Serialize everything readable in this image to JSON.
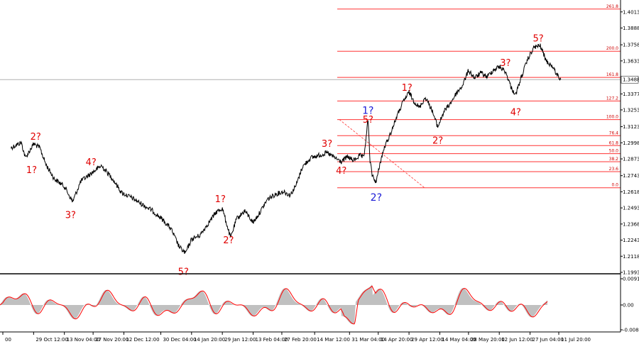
{
  "chart_data": {
    "type": "line",
    "main_panel": {
      "y_ticks": [
        "1.4013",
        "1.3888",
        "1.3758",
        "1.3633",
        "1.3377",
        "1.3253",
        "1.3123",
        "1.2998",
        "1.2873",
        "1.2743",
        "1.2618",
        "1.2493",
        "1.2368",
        "1.2243",
        "1.2118",
        "1.1993"
      ],
      "ylim": [
        1.1993,
        1.41
      ],
      "current_price": "1.3488",
      "price_line_color": "#b0b0b0",
      "series_color": "#000000",
      "fibonacci": {
        "color": "#ff3333",
        "levels": [
          {
            "label": "261.8",
            "value": 1.4035
          },
          {
            "label": "200.0",
            "value": 1.3708
          },
          {
            "label": "161.8",
            "value": 1.3505
          },
          {
            "label": "127.2",
            "value": 1.3322
          },
          {
            "label": "100.0",
            "value": 1.3178
          },
          {
            "label": "76.4",
            "value": 1.3053
          },
          {
            "label": "61.8",
            "value": 1.2976
          },
          {
            "label": "50.0",
            "value": 1.2914
          },
          {
            "label": "38.2",
            "value": 1.2851
          },
          {
            "label": "23.6",
            "value": 1.2774
          },
          {
            "label": "0.0",
            "value": 1.2649
          }
        ]
      },
      "wave_labels": [
        {
          "text": "2?",
          "color": "red",
          "date": "2023-10-30",
          "price": 1.305
        },
        {
          "text": "1?",
          "color": "red",
          "date": "2023-10-28",
          "price": 1.279
        },
        {
          "text": "4?",
          "color": "red",
          "date": "2023-11-26",
          "price": 1.285
        },
        {
          "text": "3?",
          "color": "red",
          "date": "2023-11-16",
          "price": 1.244
        },
        {
          "text": "5?",
          "color": "red",
          "date": "2024-01-10",
          "price": 1.2
        },
        {
          "text": "1?",
          "color": "red",
          "date": "2024-01-28",
          "price": 1.2565
        },
        {
          "text": "2?",
          "color": "red",
          "date": "2024-02-01",
          "price": 1.2245
        },
        {
          "text": "3?",
          "color": "red",
          "date": "2024-03-20",
          "price": 1.2995
        },
        {
          "text": "4?",
          "color": "red",
          "date": "2024-03-27",
          "price": 1.2785
        },
        {
          "text": "1?",
          "color": "blue",
          "date": "2024-04-09",
          "price": 1.325
        },
        {
          "text": "5?",
          "color": "red",
          "date": "2024-04-09",
          "price": 1.318
        },
        {
          "text": "2?",
          "color": "blue",
          "date": "2024-04-13",
          "price": 1.2575
        },
        {
          "text": "1?",
          "color": "red",
          "date": "2024-04-28",
          "price": 1.343
        },
        {
          "text": "2?",
          "color": "red",
          "date": "2024-05-13",
          "price": 1.302
        },
        {
          "text": "3?",
          "color": "red",
          "date": "2024-06-15",
          "price": 1.362
        },
        {
          "text": "4?",
          "color": "red",
          "date": "2024-06-20",
          "price": 1.324
        },
        {
          "text": "5?",
          "color": "red",
          "date": "2024-07-01",
          "price": 1.381
        }
      ],
      "series": [
        {
          "date": "2023-10-18",
          "price": 1.296
        },
        {
          "date": "2023-10-23",
          "price": 1.3
        },
        {
          "date": "2023-10-25",
          "price": 1.288
        },
        {
          "date": "2023-10-29",
          "price": 1.299
        },
        {
          "date": "2023-11-01",
          "price": 1.296
        },
        {
          "date": "2023-11-04",
          "price": 1.283
        },
        {
          "date": "2023-11-08",
          "price": 1.272
        },
        {
          "date": "2023-11-13",
          "price": 1.266
        },
        {
          "date": "2023-11-17",
          "price": 1.254
        },
        {
          "date": "2023-11-21",
          "price": 1.27
        },
        {
          "date": "2023-11-26",
          "price": 1.276
        },
        {
          "date": "2023-12-01",
          "price": 1.282
        },
        {
          "date": "2023-12-06",
          "price": 1.273
        },
        {
          "date": "2023-12-11",
          "price": 1.261
        },
        {
          "date": "2023-12-16",
          "price": 1.257
        },
        {
          "date": "2023-12-21",
          "price": 1.252
        },
        {
          "date": "2023-12-26",
          "price": 1.247
        },
        {
          "date": "2023-12-31",
          "price": 1.24
        },
        {
          "date": "2024-01-04",
          "price": 1.233
        },
        {
          "date": "2024-01-08",
          "price": 1.219
        },
        {
          "date": "2024-01-11",
          "price": 1.214
        },
        {
          "date": "2024-01-14",
          "price": 1.225
        },
        {
          "date": "2024-01-18",
          "price": 1.228
        },
        {
          "date": "2024-01-22",
          "price": 1.237
        },
        {
          "date": "2024-01-26",
          "price": 1.246
        },
        {
          "date": "2024-01-29",
          "price": 1.249
        },
        {
          "date": "2024-02-02",
          "price": 1.226
        },
        {
          "date": "2024-02-05",
          "price": 1.241
        },
        {
          "date": "2024-02-09",
          "price": 1.247
        },
        {
          "date": "2024-02-13",
          "price": 1.238
        },
        {
          "date": "2024-02-16",
          "price": 1.245
        },
        {
          "date": "2024-02-20",
          "price": 1.256
        },
        {
          "date": "2024-02-24",
          "price": 1.26
        },
        {
          "date": "2024-02-28",
          "price": 1.262
        },
        {
          "date": "2024-03-02",
          "price": 1.259
        },
        {
          "date": "2024-03-05",
          "price": 1.267
        },
        {
          "date": "2024-03-08",
          "price": 1.281
        },
        {
          "date": "2024-03-12",
          "price": 1.288
        },
        {
          "date": "2024-03-16",
          "price": 1.29
        },
        {
          "date": "2024-03-20",
          "price": 1.292
        },
        {
          "date": "2024-03-24",
          "price": 1.288
        },
        {
          "date": "2024-03-27",
          "price": 1.285
        },
        {
          "date": "2024-03-30",
          "price": 1.289
        },
        {
          "date": "2024-04-02",
          "price": 1.286
        },
        {
          "date": "2024-04-05",
          "price": 1.29
        },
        {
          "date": "2024-04-07",
          "price": 1.288
        },
        {
          "date": "2024-04-09",
          "price": 1.318
        },
        {
          "date": "2024-04-10",
          "price": 1.286
        },
        {
          "date": "2024-04-11",
          "price": 1.275
        },
        {
          "date": "2024-04-13",
          "price": 1.269
        },
        {
          "date": "2024-04-15",
          "price": 1.285
        },
        {
          "date": "2024-04-17",
          "price": 1.296
        },
        {
          "date": "2024-04-20",
          "price": 1.307
        },
        {
          "date": "2024-04-23",
          "price": 1.32
        },
        {
          "date": "2024-04-26",
          "price": 1.331
        },
        {
          "date": "2024-04-29",
          "price": 1.339
        },
        {
          "date": "2024-05-01",
          "price": 1.333
        },
        {
          "date": "2024-05-04",
          "price": 1.327
        },
        {
          "date": "2024-05-07",
          "price": 1.335
        },
        {
          "date": "2024-05-10",
          "price": 1.326
        },
        {
          "date": "2024-05-13",
          "price": 1.312
        },
        {
          "date": "2024-05-16",
          "price": 1.324
        },
        {
          "date": "2024-05-19",
          "price": 1.33
        },
        {
          "date": "2024-05-22",
          "price": 1.338
        },
        {
          "date": "2024-05-25",
          "price": 1.344
        },
        {
          "date": "2024-05-28",
          "price": 1.356
        },
        {
          "date": "2024-05-31",
          "price": 1.35
        },
        {
          "date": "2024-06-03",
          "price": 1.354
        },
        {
          "date": "2024-06-06",
          "price": 1.351
        },
        {
          "date": "2024-06-09",
          "price": 1.356
        },
        {
          "date": "2024-06-12",
          "price": 1.359
        },
        {
          "date": "2024-06-15",
          "price": 1.355
        },
        {
          "date": "2024-06-18",
          "price": 1.342
        },
        {
          "date": "2024-06-20",
          "price": 1.337
        },
        {
          "date": "2024-06-23",
          "price": 1.352
        },
        {
          "date": "2024-06-26",
          "price": 1.365
        },
        {
          "date": "2024-06-29",
          "price": 1.374
        },
        {
          "date": "2024-07-02",
          "price": 1.375
        },
        {
          "date": "2024-07-05",
          "price": 1.363
        },
        {
          "date": "2024-07-08",
          "price": 1.359
        },
        {
          "date": "2024-07-10",
          "price": 1.353
        },
        {
          "date": "2024-07-12",
          "price": 1.349
        }
      ]
    },
    "oscillator": {
      "y_ticks": [
        "0.0091",
        "0.00",
        "-0.00862"
      ],
      "ylim": [
        -0.00862,
        0.0091
      ],
      "histogram_color": "#c0c0c0",
      "signal_color": "#ff0000"
    },
    "x_ticks": [
      "00",
      "29 Oct 12:00",
      "13 Nov 04:00",
      "27 Nov 20:00",
      "12 Dec 12:00",
      "30 Dec 04:00",
      "14 Jan 20:00",
      "29 Jan 12:00",
      "13 Feb 04:00",
      "27 Feb 20:00",
      "14 Mar 12:00",
      "31 Mar 04:00",
      "14 Apr 20:00",
      "29 Apr 12:00",
      "14 May 04:00",
      "28 May 20:00",
      "12 Jun 12:00",
      "27 Jun 04:00",
      "11 Jul 20:00"
    ],
    "x_tick_dates": [
      "2023-10-14",
      "2023-10-29",
      "2023-11-13",
      "2023-11-27",
      "2023-12-12",
      "2023-12-30",
      "2024-01-14",
      "2024-01-29",
      "2024-02-13",
      "2024-02-27",
      "2024-03-14",
      "2024-03-31",
      "2024-04-14",
      "2024-04-29",
      "2024-05-14",
      "2024-05-28",
      "2024-06-12",
      "2024-06-27",
      "2024-07-11"
    ],
    "title": "",
    "xlabel": "",
    "ylabel": ""
  }
}
